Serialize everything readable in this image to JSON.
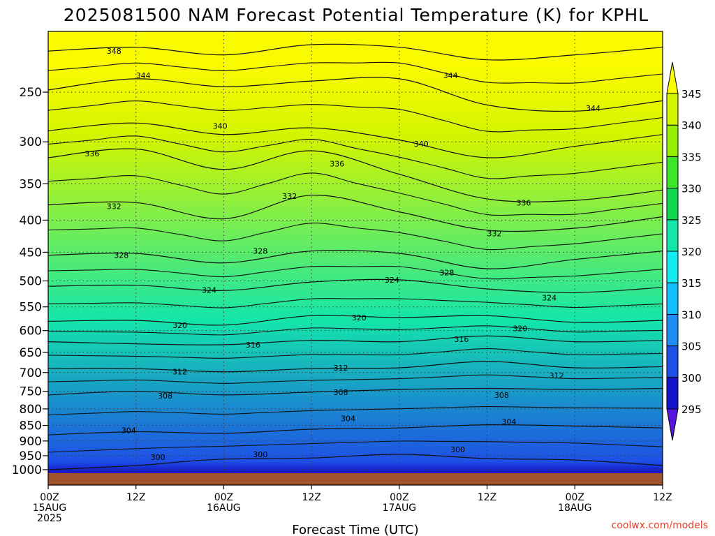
{
  "chart_data": {
    "type": "heatmap",
    "title": "2025081500 NAM Forecast Potential Temperature (K) for KPHL",
    "xlabel": "Forecast Time (UTC)",
    "ylabel": "",
    "x_ticks": [
      {
        "hour": 0,
        "lines": [
          "00Z",
          "15AUG",
          "2025"
        ]
      },
      {
        "hour": 12,
        "lines": [
          "12Z"
        ]
      },
      {
        "hour": 24,
        "lines": [
          "00Z",
          "16AUG"
        ]
      },
      {
        "hour": 36,
        "lines": [
          "12Z"
        ]
      },
      {
        "hour": 48,
        "lines": [
          "00Z",
          "17AUG"
        ]
      },
      {
        "hour": 60,
        "lines": [
          "12Z"
        ]
      },
      {
        "hour": 72,
        "lines": [
          "00Z",
          "18AUG"
        ]
      },
      {
        "hour": 84,
        "lines": [
          "12Z"
        ]
      }
    ],
    "xlim": [
      0,
      84
    ],
    "y_ticks": [
      250,
      300,
      350,
      400,
      450,
      500,
      550,
      600,
      650,
      700,
      750,
      800,
      850,
      900,
      950,
      1000
    ],
    "ylim": [
      200,
      1013
    ],
    "y_scale": "log",
    "colorbar": {
      "levels": [
        295,
        300,
        305,
        310,
        315,
        320,
        325,
        330,
        335,
        340,
        345
      ],
      "colors": [
        "#5a14e0",
        "#1414c8",
        "#1e50e6",
        "#1e8cf0",
        "#14beff",
        "#14ebf0",
        "#14e6aa",
        "#14d750",
        "#3ce628",
        "#96f000",
        "#d2f500",
        "#fafa00"
      ]
    },
    "contour_interval": 2,
    "contours": [
      {
        "theta": 300,
        "label": "300",
        "points": [
          [
            0,
            1000
          ],
          [
            12,
            985
          ],
          [
            18,
            972
          ],
          [
            24,
            962
          ],
          [
            36,
            958
          ],
          [
            48,
            945
          ],
          [
            60,
            960
          ],
          [
            72,
            965
          ],
          [
            84,
            985
          ]
        ]
      },
      {
        "theta": 304,
        "label": "304",
        "points": [
          [
            0,
            880
          ],
          [
            12,
            870
          ],
          [
            24,
            875
          ],
          [
            36,
            862
          ],
          [
            48,
            858
          ],
          [
            60,
            848
          ],
          [
            72,
            852
          ],
          [
            84,
            858
          ]
        ]
      },
      {
        "theta": 308,
        "label": "308",
        "points": [
          [
            0,
            760
          ],
          [
            12,
            750
          ],
          [
            24,
            760
          ],
          [
            36,
            752
          ],
          [
            48,
            745
          ],
          [
            60,
            742
          ],
          [
            72,
            745
          ],
          [
            84,
            742
          ]
        ]
      },
      {
        "theta": 312,
        "label": "312",
        "points": [
          [
            0,
            690
          ],
          [
            12,
            690
          ],
          [
            24,
            698
          ],
          [
            36,
            690
          ],
          [
            48,
            688
          ],
          [
            60,
            672
          ],
          [
            72,
            688
          ],
          [
            84,
            685
          ]
        ]
      },
      {
        "theta": 316,
        "label": "316",
        "points": [
          [
            0,
            625
          ],
          [
            12,
            630
          ],
          [
            24,
            632
          ],
          [
            36,
            622
          ],
          [
            48,
            625
          ],
          [
            60,
            612
          ],
          [
            72,
            625
          ],
          [
            84,
            622
          ]
        ]
      },
      {
        "theta": 320,
        "label": "320",
        "points": [
          [
            0,
            580
          ],
          [
            12,
            578
          ],
          [
            24,
            588
          ],
          [
            36,
            568
          ],
          [
            48,
            572
          ],
          [
            60,
            568
          ],
          [
            72,
            582
          ],
          [
            84,
            578
          ]
        ]
      },
      {
        "theta": 324,
        "label": "324",
        "points": [
          [
            0,
            510
          ],
          [
            12,
            508
          ],
          [
            24,
            518
          ],
          [
            36,
            502
          ],
          [
            48,
            498
          ],
          [
            60,
            515
          ],
          [
            72,
            522
          ],
          [
            84,
            512
          ]
        ]
      },
      {
        "theta": 328,
        "label": "328",
        "points": [
          [
            0,
            455
          ],
          [
            12,
            452
          ],
          [
            24,
            468
          ],
          [
            36,
            448
          ],
          [
            48,
            452
          ],
          [
            60,
            478
          ],
          [
            72,
            462
          ],
          [
            84,
            448
          ]
        ]
      },
      {
        "theta": 332,
        "label": "332",
        "points": [
          [
            0,
            378
          ],
          [
            12,
            375
          ],
          [
            24,
            398
          ],
          [
            36,
            365
          ],
          [
            48,
            388
          ],
          [
            60,
            415
          ],
          [
            72,
            412
          ],
          [
            84,
            395
          ]
        ]
      },
      {
        "theta": 336,
        "label": "336",
        "points": [
          [
            0,
            318
          ],
          [
            12,
            308
          ],
          [
            24,
            332
          ],
          [
            36,
            310
          ],
          [
            48,
            338
          ],
          [
            60,
            370
          ],
          [
            72,
            372
          ],
          [
            84,
            358
          ]
        ]
      },
      {
        "theta": 340,
        "label": "340",
        "points": [
          [
            0,
            288
          ],
          [
            12,
            280
          ],
          [
            24,
            292
          ],
          [
            36,
            285
          ],
          [
            48,
            298
          ],
          [
            60,
            318
          ],
          [
            72,
            305
          ],
          [
            84,
            292
          ]
        ]
      },
      {
        "theta": 344,
        "label": "344",
        "points": [
          [
            0,
            248
          ],
          [
            12,
            238
          ],
          [
            24,
            245
          ],
          [
            36,
            240
          ],
          [
            48,
            238
          ],
          [
            60,
            262
          ],
          [
            72,
            268
          ],
          [
            84,
            258
          ]
        ]
      },
      {
        "theta": 348,
        "label": "348",
        "points": [
          [
            0,
            215
          ],
          [
            12,
            212
          ],
          [
            24,
            218
          ],
          [
            36,
            210
          ],
          [
            48,
            212
          ],
          [
            60,
            222
          ],
          [
            72,
            218
          ],
          [
            84,
            212
          ]
        ]
      }
    ],
    "contour_labels": [
      {
        "text": "348",
        "hour": 9.0,
        "p": 215
      },
      {
        "text": "344",
        "hour": 13.0,
        "p": 235
      },
      {
        "text": "344",
        "hour": 55.0,
        "p": 235
      },
      {
        "text": "344",
        "hour": 74.5,
        "p": 265
      },
      {
        "text": "340",
        "hour": 23.5,
        "p": 283
      },
      {
        "text": "340",
        "hour": 51.0,
        "p": 302
      },
      {
        "text": "336",
        "hour": 6.0,
        "p": 313
      },
      {
        "text": "336",
        "hour": 39.5,
        "p": 325
      },
      {
        "text": "336",
        "hour": 65.0,
        "p": 375
      },
      {
        "text": "332",
        "hour": 9.0,
        "p": 380
      },
      {
        "text": "332",
        "hour": 33.0,
        "p": 366
      },
      {
        "text": "332",
        "hour": 61.0,
        "p": 420
      },
      {
        "text": "328",
        "hour": 10.0,
        "p": 455
      },
      {
        "text": "328",
        "hour": 29.0,
        "p": 448
      },
      {
        "text": "328",
        "hour": 54.5,
        "p": 485
      },
      {
        "text": "324",
        "hour": 22.0,
        "p": 517
      },
      {
        "text": "324",
        "hour": 47.0,
        "p": 498
      },
      {
        "text": "324",
        "hour": 68.5,
        "p": 532
      },
      {
        "text": "320",
        "hour": 18.0,
        "p": 588
      },
      {
        "text": "320",
        "hour": 42.5,
        "p": 572
      },
      {
        "text": "320",
        "hour": 64.5,
        "p": 595
      },
      {
        "text": "316",
        "hour": 28.0,
        "p": 632
      },
      {
        "text": "316",
        "hour": 56.5,
        "p": 619
      },
      {
        "text": "312",
        "hour": 18.0,
        "p": 698
      },
      {
        "text": "312",
        "hour": 40.0,
        "p": 688
      },
      {
        "text": "312",
        "hour": 69.5,
        "p": 708
      },
      {
        "text": "308",
        "hour": 16.0,
        "p": 762
      },
      {
        "text": "308",
        "hour": 40.0,
        "p": 752
      },
      {
        "text": "308",
        "hour": 62.0,
        "p": 760
      },
      {
        "text": "304",
        "hour": 11.0,
        "p": 865
      },
      {
        "text": "304",
        "hour": 41.0,
        "p": 828
      },
      {
        "text": "304",
        "hour": 63.0,
        "p": 838
      },
      {
        "text": "300",
        "hour": 15.0,
        "p": 955
      },
      {
        "text": "300",
        "hour": 29.0,
        "p": 945
      },
      {
        "text": "300",
        "hour": 56.0,
        "p": 928
      }
    ],
    "surface_color": "#a0522d",
    "credit": "coolwx.com/models"
  }
}
